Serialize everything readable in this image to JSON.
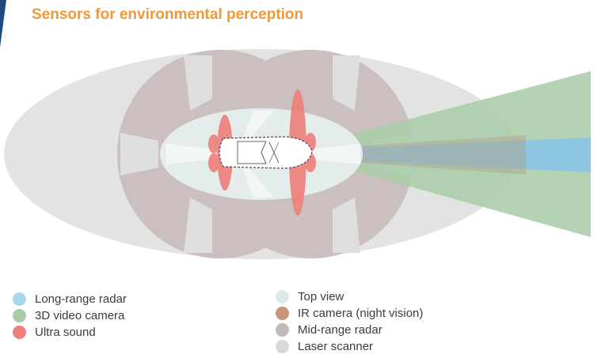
{
  "title": "Sensors for environmental perception",
  "legend_left": [
    {
      "label": "Long-range radar",
      "color": "#a8d8e8"
    },
    {
      "label": "3D video camera",
      "color": "#a9cba9"
    },
    {
      "label": "Ultra sound",
      "color": "#ef7f7a"
    }
  ],
  "legend_right": [
    {
      "label": "Top view",
      "color": "#dde8e8"
    },
    {
      "label": "IR camera (night vision)",
      "color": "#c9957a"
    },
    {
      "label": "Mid-range radar",
      "color": "#c4b7b7"
    },
    {
      "label": "Laser scanner",
      "color": "#d9d9d9"
    }
  ],
  "colors": {
    "laser": "#e3e3e3",
    "mid_radar": "#cbbfbf",
    "top_view": "#e4ecec",
    "camera": "#aacdaa",
    "long_radar": "#8cc6e0",
    "ir": "#b49f88",
    "ultrasound": "#ef7f7a",
    "accent": "#f0973a"
  }
}
